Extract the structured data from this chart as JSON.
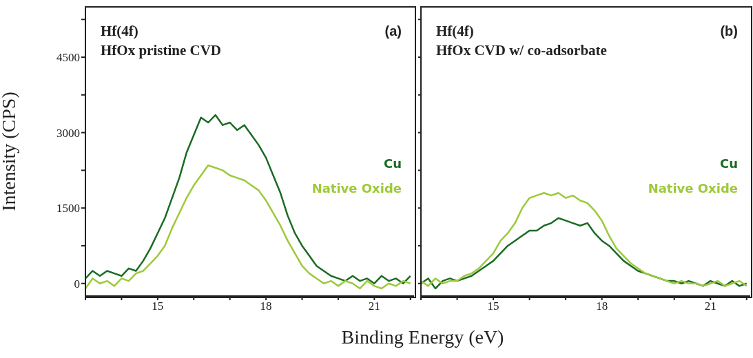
{
  "chart_data": [
    {
      "type": "line",
      "ylabel": "Intensity (CPS)",
      "xlabel": "Binding Energy (eV)",
      "annotations": [
        "Hf(4f)",
        "HfOx pristine CVD",
        "(a)"
      ],
      "legend": "right",
      "marker": "none",
      "grid": false,
      "xlim": [
        13,
        22.1
      ],
      "xticks": [
        {
          "value": 13,
          "label": null
        },
        {
          "value": 14,
          "label": null
        },
        15,
        {
          "value": 16,
          "label": null
        },
        {
          "value": 17,
          "label": null
        },
        18,
        {
          "value": 19,
          "label": null
        },
        {
          "value": 20,
          "label": null
        },
        21,
        {
          "value": 22,
          "label": null
        }
      ],
      "ylim": [
        -250,
        5500
      ],
      "yticks": [
        0,
        {
          "value": 750,
          "label": null
        },
        1500,
        {
          "value": 2250,
          "label": null
        },
        3000,
        {
          "value": 3750,
          "label": null
        },
        4500,
        {
          "value": 5250,
          "label": null
        }
      ],
      "x": [
        13,
        13.2,
        13.4,
        13.6,
        13.8,
        14,
        14.2,
        14.4,
        14.6,
        14.8,
        15,
        15.2,
        15.4,
        15.6,
        15.8,
        16,
        16.2,
        16.4,
        16.6,
        16.8,
        17,
        17.2,
        17.4,
        17.6,
        17.8,
        18,
        18.2,
        18.4,
        18.6,
        18.8,
        19,
        19.2,
        19.4,
        19.6,
        19.8,
        20,
        20.2,
        20.4,
        20.6,
        20.8,
        21,
        21.2,
        21.4,
        21.6,
        21.8,
        22
      ],
      "series": [
        {
          "name": "Cu",
          "color": "#1a6b23",
          "values": [
            100,
            250,
            150,
            250,
            200,
            150,
            300,
            250,
            450,
            700,
            1000,
            1300,
            1700,
            2100,
            2600,
            2950,
            3300,
            3200,
            3350,
            3150,
            3200,
            3050,
            3150,
            2950,
            2750,
            2500,
            2150,
            1800,
            1350,
            1000,
            750,
            550,
            350,
            250,
            150,
            100,
            50,
            150,
            50,
            100,
            0,
            150,
            50,
            100,
            0,
            150
          ]
        },
        {
          "name": "Native Oxide",
          "color": "#9dc93a",
          "values": [
            -100,
            100,
            0,
            50,
            -50,
            100,
            50,
            200,
            250,
            400,
            550,
            750,
            1100,
            1400,
            1700,
            1950,
            2150,
            2350,
            2300,
            2250,
            2150,
            2100,
            2050,
            1950,
            1850,
            1650,
            1400,
            1150,
            850,
            600,
            350,
            200,
            100,
            0,
            50,
            -50,
            50,
            0,
            -100,
            50,
            -50,
            -100,
            0,
            -50,
            50,
            0
          ]
        }
      ]
    },
    {
      "type": "line",
      "annotations": [
        "Hf(4f)",
        "HfOx CVD w/ co-adsorbate",
        "(b)"
      ],
      "legend": "right",
      "marker": "none",
      "grid": false,
      "tick_labels": "x",
      "xlim": [
        13,
        22.1
      ],
      "xticks": [
        {
          "value": 13,
          "label": null
        },
        {
          "value": 14,
          "label": null
        },
        15,
        {
          "value": 16,
          "label": null
        },
        {
          "value": 17,
          "label": null
        },
        18,
        {
          "value": 19,
          "label": null
        },
        {
          "value": 20,
          "label": null
        },
        21,
        {
          "value": 22,
          "label": null
        }
      ],
      "ylim": [
        -250,
        5500
      ],
      "yticks": [
        0,
        {
          "value": 750,
          "label": null
        },
        1500,
        {
          "value": 2250,
          "label": null
        },
        3000,
        {
          "value": 3750,
          "label": null
        },
        4500,
        {
          "value": 5250,
          "label": null
        }
      ],
      "x": [
        13,
        13.2,
        13.4,
        13.6,
        13.8,
        14,
        14.2,
        14.4,
        14.6,
        14.8,
        15,
        15.2,
        15.4,
        15.6,
        15.8,
        16,
        16.2,
        16.4,
        16.6,
        16.8,
        17,
        17.2,
        17.4,
        17.6,
        17.8,
        18,
        18.2,
        18.4,
        18.6,
        18.8,
        19,
        19.2,
        19.4,
        19.6,
        19.8,
        20,
        20.2,
        20.4,
        20.6,
        20.8,
        21,
        21.2,
        21.4,
        21.6,
        21.8,
        22
      ],
      "series": [
        {
          "name": "Cu",
          "color": "#1a6b23",
          "values": [
            0,
            100,
            -100,
            50,
            100,
            50,
            100,
            150,
            250,
            350,
            450,
            600,
            750,
            850,
            950,
            1050,
            1050,
            1150,
            1200,
            1300,
            1250,
            1200,
            1150,
            1200,
            1000,
            850,
            750,
            600,
            450,
            350,
            250,
            200,
            150,
            100,
            50,
            50,
            0,
            50,
            0,
            -50,
            50,
            0,
            -50,
            50,
            -50,
            0
          ]
        },
        {
          "name": "Native Oxide",
          "color": "#9dc93a",
          "values": [
            50,
            -50,
            100,
            0,
            50,
            50,
            150,
            200,
            300,
            450,
            600,
            850,
            1000,
            1200,
            1500,
            1700,
            1750,
            1800,
            1750,
            1800,
            1700,
            1750,
            1650,
            1600,
            1450,
            1250,
            950,
            700,
            550,
            400,
            300,
            200,
            150,
            100,
            50,
            0,
            50,
            0,
            0,
            -50,
            0,
            50,
            -50,
            0,
            50,
            -50
          ]
        }
      ]
    }
  ]
}
